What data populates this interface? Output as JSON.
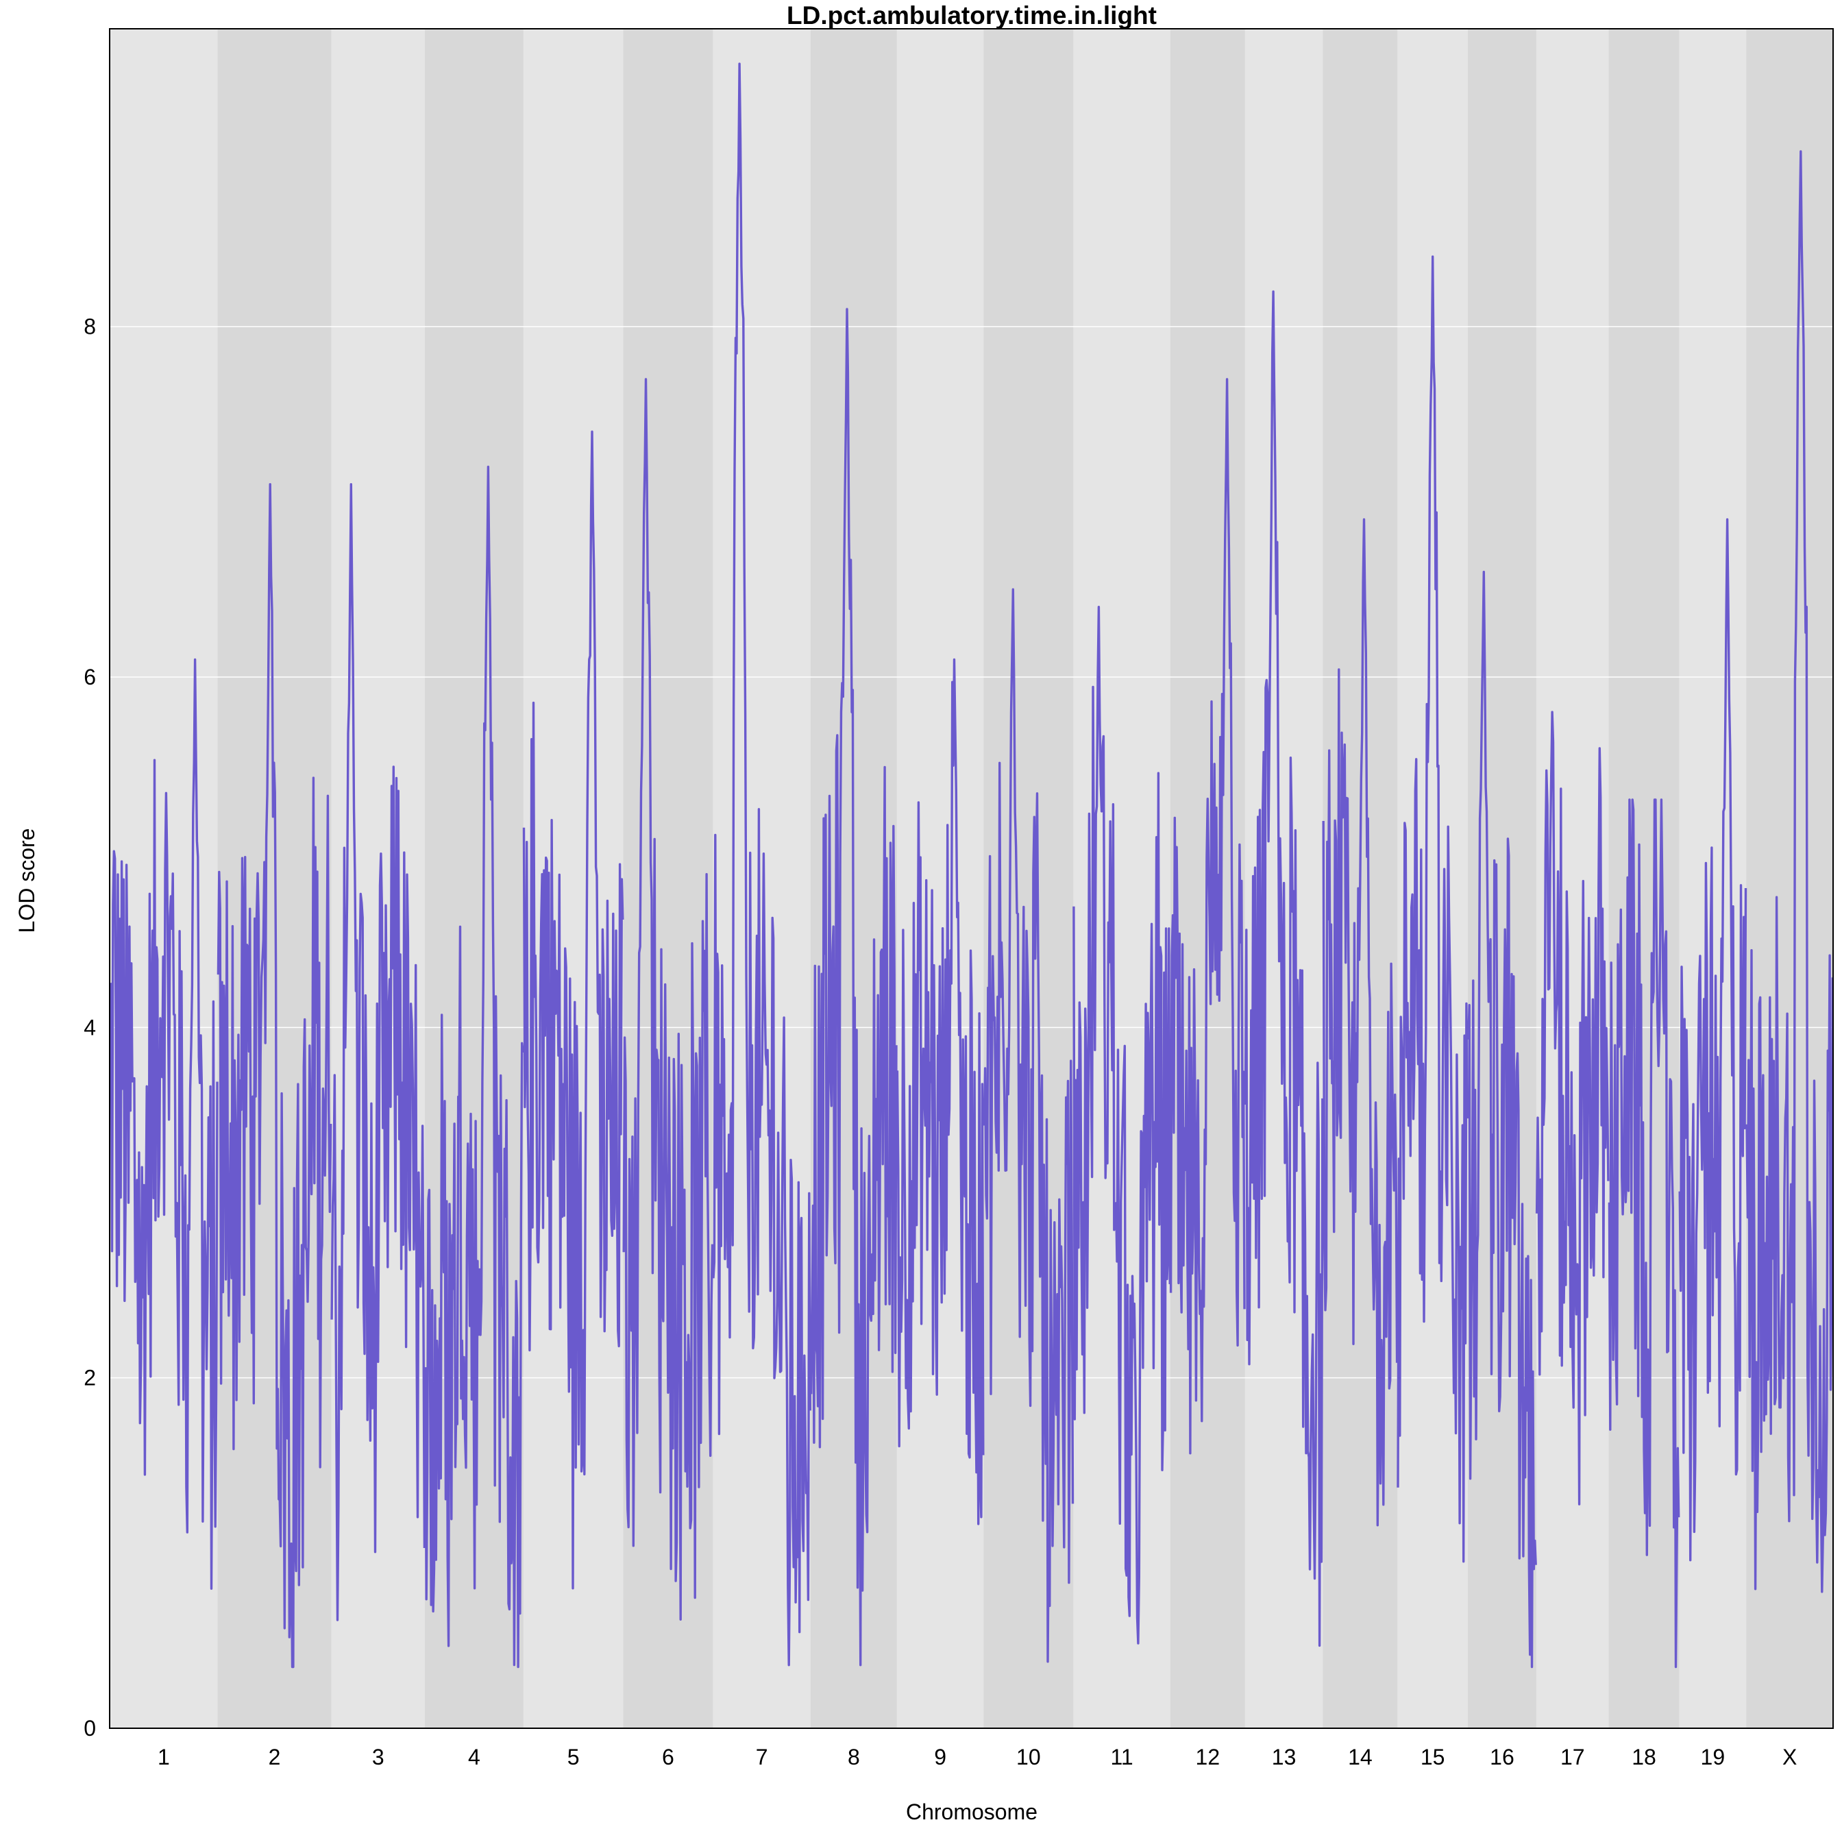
{
  "chart_data": {
    "type": "line",
    "title": "LD.pct.ambulatory.time.in.light",
    "xlabel": "Chromosome",
    "ylabel": "LOD score",
    "ylim": [
      0,
      9.7
    ],
    "y_ticks": [
      "0",
      "2",
      "4",
      "6",
      "8"
    ],
    "grid": "horizontal",
    "colors": {
      "line": "#6A5ACD",
      "band_light": "#E5E5E5",
      "band_dark": "#D8D8D8",
      "grid": "#FFFFFF",
      "frame": "#000000"
    },
    "chromosomes": [
      {
        "label": "1",
        "max_lod": 6.1
      },
      {
        "label": "2",
        "max_lod": 7.1
      },
      {
        "label": "3",
        "max_lod": 7.1
      },
      {
        "label": "4",
        "max_lod": 7.2
      },
      {
        "label": "5",
        "max_lod": 7.4
      },
      {
        "label": "6",
        "max_lod": 7.7
      },
      {
        "label": "7",
        "max_lod": 9.5
      },
      {
        "label": "8",
        "max_lod": 8.1
      },
      {
        "label": "9",
        "max_lod": 6.1
      },
      {
        "label": "10",
        "max_lod": 6.5
      },
      {
        "label": "11",
        "max_lod": 6.4
      },
      {
        "label": "12",
        "max_lod": 7.7
      },
      {
        "label": "13",
        "max_lod": 8.2
      },
      {
        "label": "14",
        "max_lod": 6.9
      },
      {
        "label": "15",
        "max_lod": 8.4
      },
      {
        "label": "16",
        "max_lod": 6.6
      },
      {
        "label": "17",
        "max_lod": 5.8
      },
      {
        "label": "18",
        "max_lod": 5.3
      },
      {
        "label": "19",
        "max_lod": 6.9
      },
      {
        "label": "X",
        "max_lod": 9.0
      }
    ]
  }
}
